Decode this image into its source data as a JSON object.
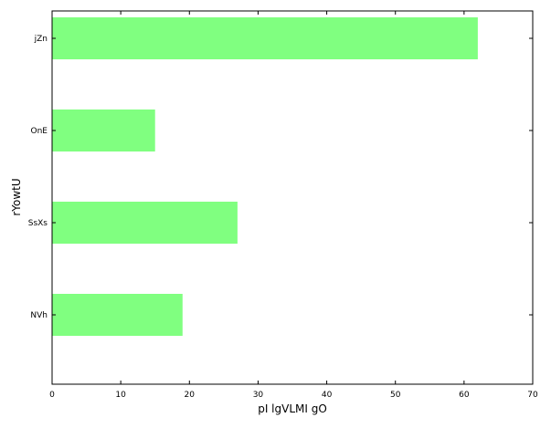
{
  "chart_data": {
    "type": "bar",
    "orientation": "horizontal",
    "categories": [
      "NVh",
      "SsXs",
      "OnE",
      "jZn"
    ],
    "values": [
      19,
      27,
      15,
      62
    ],
    "xlabel": "pI lgVLMI gO",
    "ylabel": "rYowtU",
    "xlim": [
      0,
      70
    ],
    "xticks": [
      "0",
      "10",
      "20",
      "30",
      "40",
      "50",
      "60",
      "70"
    ],
    "grid": false,
    "bar_color": "#80ff80"
  }
}
